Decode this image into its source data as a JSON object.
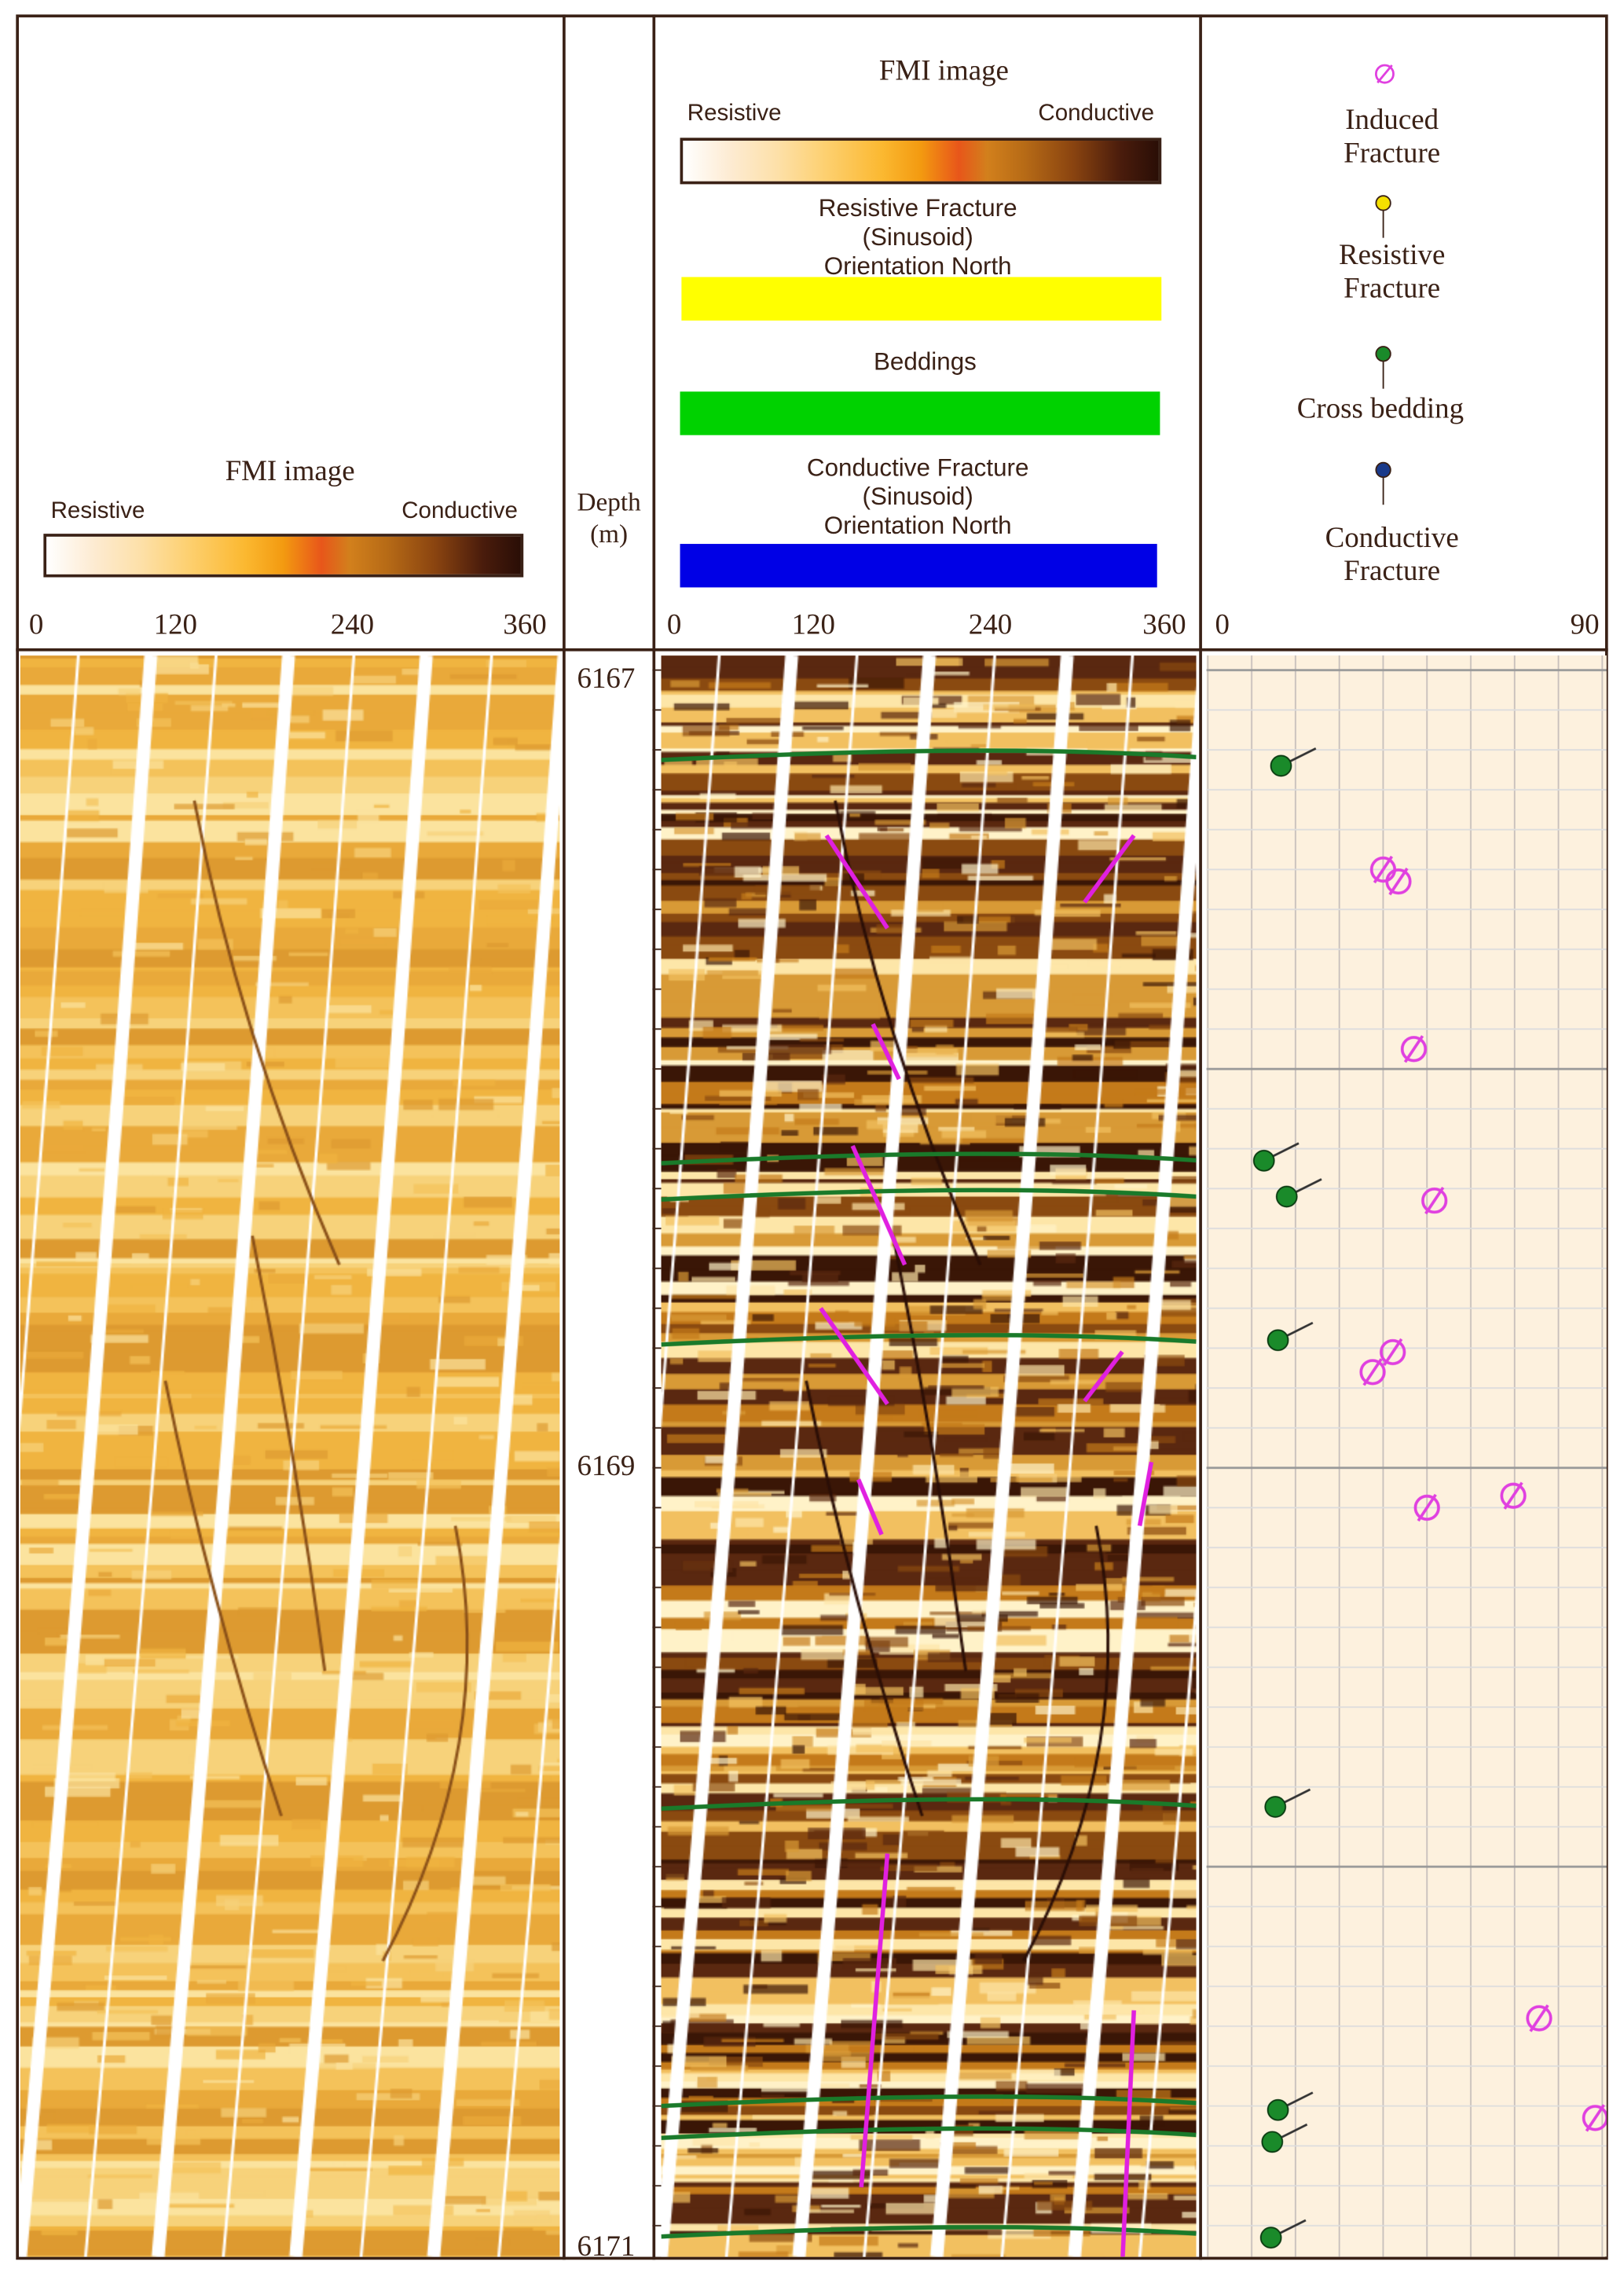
{
  "left_panel": {
    "title": "FMI image",
    "resistive_label": "Resistive",
    "conductive_label": "Conductive",
    "axis_ticks": [
      "0",
      "120",
      "240",
      "360"
    ]
  },
  "depth_track": {
    "title": "Depth",
    "unit": "(m)",
    "depth_labels": [
      "6167",
      "6169",
      "6171"
    ]
  },
  "middle_panel": {
    "title": "FMI image",
    "resistive_label": "Resistive",
    "conductive_label": "Conductive",
    "legend": [
      {
        "label_lines": [
          "Resistive Fracture",
          "(Sinusoid)",
          "Orientation North"
        ],
        "color": "#ffff00"
      },
      {
        "label_lines": [
          "Beddings"
        ],
        "color": "#00d200"
      },
      {
        "label_lines": [
          "Conductive Fracture",
          "(Sinusoid)",
          "Orientation North"
        ],
        "color": "#0000e6"
      }
    ],
    "axis_ticks": [
      "0",
      "120",
      "240",
      "360"
    ]
  },
  "tadpole_panel": {
    "legend": [
      {
        "label_lines": [
          "Induced",
          "Fracture"
        ],
        "symbol": "induced",
        "color": "#e040e0"
      },
      {
        "label_lines": [
          "Resistive",
          "Fracture"
        ],
        "symbol": "tadpole",
        "color": "#f5e000"
      },
      {
        "label_lines": [
          "Cross bedding"
        ],
        "symbol": "tadpole",
        "color": "#1a8a2a"
      },
      {
        "label_lines": [
          "Conductive",
          "Fracture"
        ],
        "symbol": "tadpole",
        "color": "#1a3a8a"
      }
    ],
    "axis_ticks": [
      "0",
      "90"
    ],
    "dip_range": [
      0,
      90
    ],
    "depth_range": [
      6167,
      6171
    ],
    "cross_bedding": [
      {
        "depth": 6167.24,
        "dip": 16.7
      },
      {
        "depth": 6168.23,
        "dip": 12.8
      },
      {
        "depth": 6168.32,
        "dip": 18
      },
      {
        "depth": 6168.68,
        "dip": 16
      },
      {
        "depth": 6169.85,
        "dip": 15.4
      },
      {
        "depth": 6170.61,
        "dip": 16
      },
      {
        "depth": 6170.69,
        "dip": 14.7
      },
      {
        "depth": 6170.93,
        "dip": 14.4
      }
    ],
    "induced_fractures": [
      {
        "depth": 6167.5,
        "dip": 40
      },
      {
        "depth": 6167.53,
        "dip": 43.5
      },
      {
        "depth": 6167.95,
        "dip": 47
      },
      {
        "depth": 6168.33,
        "dip": 51.7
      },
      {
        "depth": 6168.76,
        "dip": 37.6
      },
      {
        "depth": 6168.71,
        "dip": 42.2
      },
      {
        "depth": 6169.1,
        "dip": 50
      },
      {
        "depth": 6169.07,
        "dip": 69.7
      },
      {
        "depth": 6170.38,
        "dip": 75.6
      },
      {
        "depth": 6170.63,
        "dip": 88.4
      }
    ]
  }
}
